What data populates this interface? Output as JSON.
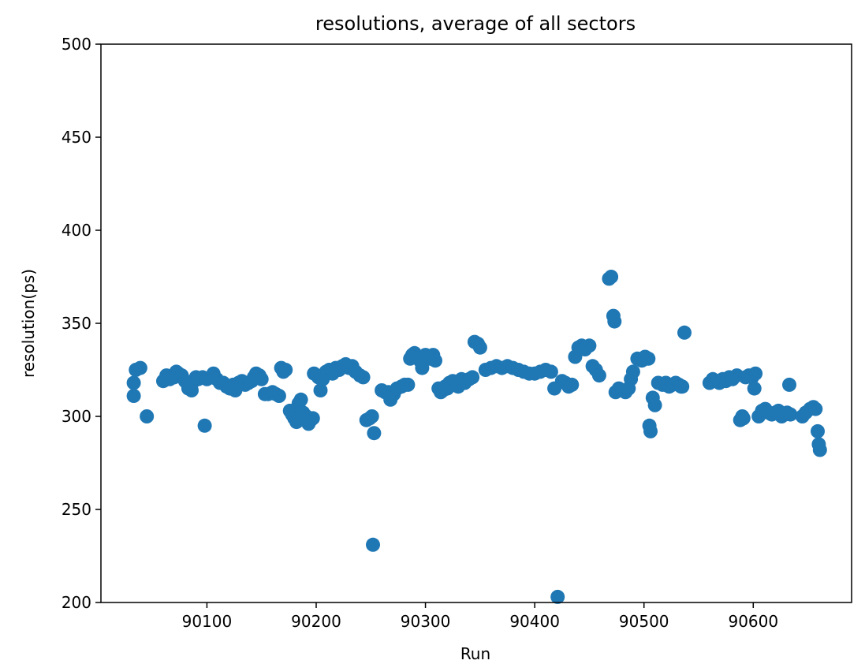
{
  "chart_data": {
    "type": "scatter",
    "title": "resolutions, average of all sectors",
    "xlabel": "Run",
    "ylabel": "resolution(ps)",
    "xlim": [
      90003,
      90690
    ],
    "ylim": [
      200,
      500
    ],
    "xticks": [
      90100,
      90200,
      90300,
      90400,
      90500,
      90600
    ],
    "yticks": [
      200,
      250,
      300,
      350,
      400,
      450,
      500
    ],
    "grid": false,
    "legend": "none",
    "color": "#1f77b4",
    "series": [
      {
        "points": [
          [
            90033,
            311
          ],
          [
            90033,
            318
          ],
          [
            90035,
            325
          ],
          [
            90039,
            326
          ],
          [
            90045,
            300
          ],
          [
            90060,
            319
          ],
          [
            90063,
            322
          ],
          [
            90066,
            320
          ],
          [
            90070,
            321
          ],
          [
            90072,
            324
          ],
          [
            90074,
            323
          ],
          [
            90077,
            322
          ],
          [
            90080,
            319
          ],
          [
            90083,
            315
          ],
          [
            90086,
            314
          ],
          [
            90088,
            319
          ],
          [
            90090,
            321
          ],
          [
            90092,
            320
          ],
          [
            90096,
            321
          ],
          [
            90098,
            295
          ],
          [
            90100,
            320
          ],
          [
            90104,
            321
          ],
          [
            90106,
            323
          ],
          [
            90109,
            320
          ],
          [
            90112,
            318
          ],
          [
            90115,
            318
          ],
          [
            90118,
            316
          ],
          [
            90121,
            315
          ],
          [
            90124,
            317
          ],
          [
            90126,
            314
          ],
          [
            90129,
            318
          ],
          [
            90132,
            319
          ],
          [
            90135,
            317
          ],
          [
            90138,
            318
          ],
          [
            90141,
            319
          ],
          [
            90143,
            321
          ],
          [
            90145,
            323
          ],
          [
            90148,
            322
          ],
          [
            90150,
            320
          ],
          [
            90153,
            312
          ],
          [
            90156,
            312
          ],
          [
            90160,
            313
          ],
          [
            90163,
            312
          ],
          [
            90166,
            311
          ],
          [
            90168,
            326
          ],
          [
            90170,
            324
          ],
          [
            90172,
            325
          ],
          [
            90176,
            303
          ],
          [
            90178,
            301
          ],
          [
            90180,
            299
          ],
          [
            90182,
            297
          ],
          [
            90184,
            307
          ],
          [
            90186,
            309
          ],
          [
            90188,
            302
          ],
          [
            90191,
            300
          ],
          [
            90193,
            296
          ],
          [
            90195,
            298
          ],
          [
            90197,
            299
          ],
          [
            90198,
            323
          ],
          [
            90202,
            321
          ],
          [
            90204,
            314
          ],
          [
            90206,
            320
          ],
          [
            90209,
            324
          ],
          [
            90212,
            325
          ],
          [
            90215,
            323
          ],
          [
            90218,
            326
          ],
          [
            90221,
            325
          ],
          [
            90224,
            327
          ],
          [
            90227,
            328
          ],
          [
            90230,
            326
          ],
          [
            90233,
            327
          ],
          [
            90236,
            324
          ],
          [
            90240,
            322
          ],
          [
            90243,
            321
          ],
          [
            90246,
            298
          ],
          [
            90249,
            299
          ],
          [
            90251,
            300
          ],
          [
            90253,
            291
          ],
          [
            90252,
            231
          ],
          [
            90260,
            314
          ],
          [
            90263,
            313
          ],
          [
            90266,
            313
          ],
          [
            90268,
            309
          ],
          [
            90271,
            312
          ],
          [
            90274,
            315
          ],
          [
            90278,
            316
          ],
          [
            90281,
            317
          ],
          [
            90284,
            317
          ],
          [
            90286,
            331
          ],
          [
            90288,
            333
          ],
          [
            90290,
            334
          ],
          [
            90293,
            332
          ],
          [
            90295,
            330
          ],
          [
            90297,
            326
          ],
          [
            90300,
            333
          ],
          [
            90304,
            331
          ],
          [
            90307,
            333
          ],
          [
            90309,
            330
          ],
          [
            90312,
            315
          ],
          [
            90314,
            313
          ],
          [
            90316,
            314
          ],
          [
            90318,
            316
          ],
          [
            90320,
            315
          ],
          [
            90322,
            318
          ],
          [
            90325,
            319
          ],
          [
            90327,
            317
          ],
          [
            90330,
            316
          ],
          [
            90333,
            320
          ],
          [
            90336,
            318
          ],
          [
            90340,
            320
          ],
          [
            90343,
            321
          ],
          [
            90345,
            340
          ],
          [
            90348,
            339
          ],
          [
            90350,
            337
          ],
          [
            90355,
            325
          ],
          [
            90360,
            326
          ],
          [
            90365,
            327
          ],
          [
            90370,
            326
          ],
          [
            90375,
            327
          ],
          [
            90380,
            326
          ],
          [
            90385,
            325
          ],
          [
            90390,
            324
          ],
          [
            90395,
            323
          ],
          [
            90400,
            323
          ],
          [
            90405,
            324
          ],
          [
            90410,
            325
          ],
          [
            90415,
            324
          ],
          [
            90418,
            315
          ],
          [
            90421,
            203
          ],
          [
            90425,
            319
          ],
          [
            90428,
            318
          ],
          [
            90431,
            316
          ],
          [
            90434,
            317
          ],
          [
            90437,
            332
          ],
          [
            90440,
            337
          ],
          [
            90443,
            338
          ],
          [
            90446,
            336
          ],
          [
            90450,
            338
          ],
          [
            90453,
            327
          ],
          [
            90456,
            325
          ],
          [
            90459,
            322
          ],
          [
            90468,
            374
          ],
          [
            90470,
            375
          ],
          [
            90472,
            354
          ],
          [
            90473,
            351
          ],
          [
            90474,
            313
          ],
          [
            90477,
            315
          ],
          [
            90480,
            314
          ],
          [
            90483,
            313
          ],
          [
            90486,
            315
          ],
          [
            90488,
            320
          ],
          [
            90490,
            324
          ],
          [
            90494,
            331
          ],
          [
            90498,
            330
          ],
          [
            90501,
            332
          ],
          [
            90504,
            331
          ],
          [
            90505,
            295
          ],
          [
            90506,
            292
          ],
          [
            90508,
            310
          ],
          [
            90510,
            306
          ],
          [
            90513,
            318
          ],
          [
            90517,
            317
          ],
          [
            90520,
            318
          ],
          [
            90523,
            316
          ],
          [
            90526,
            317
          ],
          [
            90529,
            318
          ],
          [
            90532,
            317
          ],
          [
            90534,
            316
          ],
          [
            90535,
            316
          ],
          [
            90537,
            345
          ],
          [
            90560,
            318
          ],
          [
            90563,
            320
          ],
          [
            90566,
            319
          ],
          [
            90569,
            318
          ],
          [
            90572,
            320
          ],
          [
            90575,
            319
          ],
          [
            90578,
            321
          ],
          [
            90581,
            320
          ],
          [
            90585,
            322
          ],
          [
            90588,
            298
          ],
          [
            90590,
            300
          ],
          [
            90591,
            299
          ],
          [
            90593,
            321
          ],
          [
            90596,
            322
          ],
          [
            90599,
            321
          ],
          [
            90601,
            315
          ],
          [
            90602,
            323
          ],
          [
            90605,
            300
          ],
          [
            90608,
            303
          ],
          [
            90611,
            304
          ],
          [
            90614,
            302
          ],
          [
            90617,
            301
          ],
          [
            90620,
            302
          ],
          [
            90623,
            303
          ],
          [
            90626,
            300
          ],
          [
            90629,
            301
          ],
          [
            90631,
            302
          ],
          [
            90633,
            317
          ],
          [
            90634,
            301
          ],
          [
            90645,
            300
          ],
          [
            90648,
            302
          ],
          [
            90652,
            304
          ],
          [
            90655,
            305
          ],
          [
            90657,
            304
          ],
          [
            90659,
            292
          ],
          [
            90660,
            285
          ],
          [
            90661,
            282
          ]
        ]
      }
    ]
  }
}
